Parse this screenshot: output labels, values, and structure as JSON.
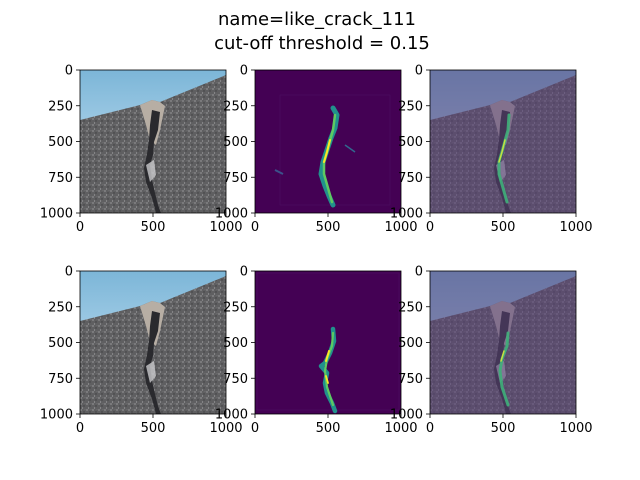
{
  "figure": {
    "title_line1": "name=like_crack_111",
    "title_line2": "cut-off threshold = 0.15"
  },
  "colors": {
    "sky_top": "#7cb6d8",
    "sky_bottom": "#cfe6f5",
    "asphalt": "#5d5d5f",
    "asphalt_light": "#8a8a8c",
    "crack_dark": "#1e1e22",
    "viridis_bg": "#440154",
    "viridis_mid": "#21918c",
    "viridis_green": "#5ec962",
    "viridis_yellow": "#fde725",
    "overlay_tint": "#5a3f7a"
  },
  "chart_data": [
    {
      "type": "heatmap",
      "panel": "row1-original-image",
      "xlim": [
        0,
        1000
      ],
      "ylim": [
        1000,
        0
      ],
      "xticks": [
        0,
        500,
        1000
      ],
      "yticks": [
        0,
        250,
        500,
        750,
        1000
      ]
    },
    {
      "type": "heatmap",
      "panel": "row1-prediction-map",
      "xlim": [
        0,
        1000
      ],
      "ylim": [
        1000,
        0
      ],
      "xticks": [
        0,
        500,
        1000
      ],
      "yticks": [
        0,
        250,
        500,
        750,
        1000
      ]
    },
    {
      "type": "heatmap",
      "panel": "row1-overlay",
      "xlim": [
        0,
        1000
      ],
      "ylim": [
        1000,
        0
      ],
      "xticks": [
        0,
        500,
        1000
      ],
      "yticks": [
        0,
        250,
        500,
        750,
        1000
      ]
    },
    {
      "type": "heatmap",
      "panel": "row2-original-image",
      "xlim": [
        0,
        1000
      ],
      "ylim": [
        1000,
        0
      ],
      "xticks": [
        0,
        500,
        1000
      ],
      "yticks": [
        0,
        250,
        500,
        750,
        1000
      ]
    },
    {
      "type": "heatmap",
      "panel": "row2-thresholded-map",
      "xlim": [
        0,
        1000
      ],
      "ylim": [
        1000,
        0
      ],
      "xticks": [
        0,
        500,
        1000
      ],
      "yticks": [
        0,
        250,
        500,
        750,
        1000
      ]
    },
    {
      "type": "heatmap",
      "panel": "row2-overlay",
      "xlim": [
        0,
        1000
      ],
      "ylim": [
        1000,
        0
      ],
      "xticks": [
        0,
        500,
        1000
      ],
      "yticks": [
        0,
        250,
        500,
        750,
        1000
      ]
    }
  ]
}
